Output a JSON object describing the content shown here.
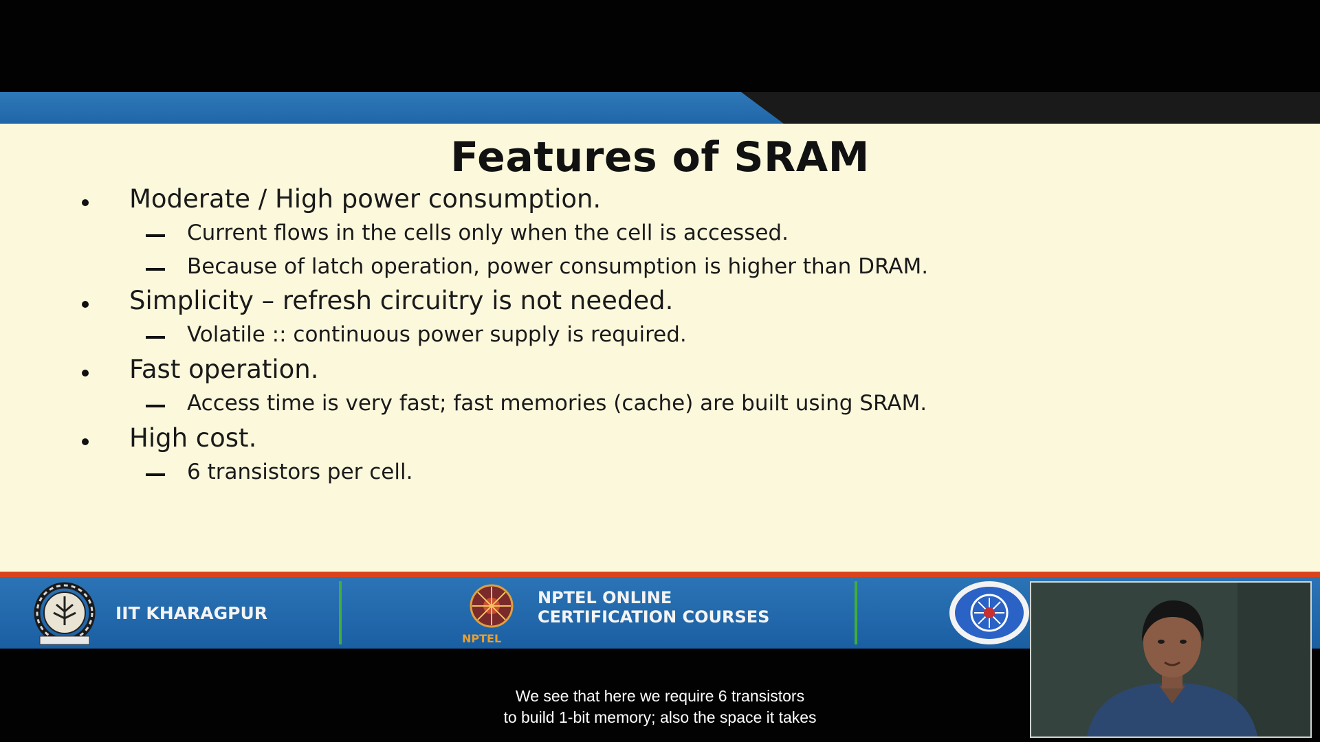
{
  "slide": {
    "title": "Features of SRAM",
    "bullets": [
      {
        "text": "Moderate / High power consumption.",
        "subs": [
          "Current flows in the cells only when the cell is accessed.",
          "Because of latch operation, power consumption is higher than DRAM."
        ]
      },
      {
        "text": "Simplicity – refresh circuitry is not needed.",
        "subs": [
          "Volatile :: continuous power supply is required."
        ]
      },
      {
        "text": "Fast operation.",
        "subs": [
          "Access time is very fast; fast memories (cache) are built using SRAM."
        ]
      },
      {
        "text": "High cost.",
        "subs": [
          "6 transistors per cell."
        ]
      }
    ]
  },
  "footer": {
    "institute": "IIT KHARAGPUR",
    "nptel_line1": "NPTEL ONLINE",
    "nptel_line2": "CERTIFICATION COURSES",
    "nptel_logo_text": "NPTEL",
    "colors": {
      "bar": "#1f66a8",
      "separator": "#3fae3a",
      "accent_line": "#d8441e"
    }
  },
  "icons": {
    "left_logo": "iit-kharagpur-emblem-icon",
    "center_logo": "nptel-logo-icon",
    "right_logo": "institute-seal-icon"
  },
  "subtitles": {
    "line1": "We see that here we require 6 transistors",
    "line2": "to build 1-bit memory; also the space it takes"
  }
}
